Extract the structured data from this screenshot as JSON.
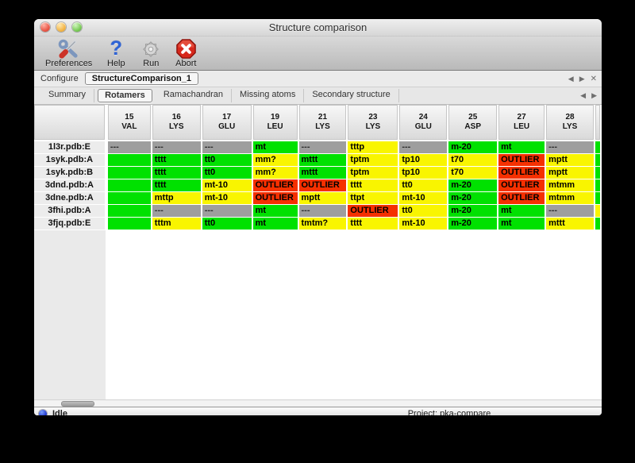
{
  "window": {
    "title": "Structure comparison"
  },
  "toolbar": {
    "items": [
      {
        "label": "Preferences",
        "icon": "tools-icon"
      },
      {
        "label": "Help",
        "icon": "question-mark-icon"
      },
      {
        "label": "Run",
        "icon": "gear-icon"
      },
      {
        "label": "Abort",
        "icon": "abort-icon"
      }
    ]
  },
  "configure": {
    "label": "Configure",
    "value": "StructureComparison_1",
    "prev": "◀",
    "next": "▶",
    "close": "✕"
  },
  "tabs": {
    "selected": "Rotamers",
    "items": [
      "Summary",
      "Rotamers",
      "Ramachandran",
      "Missing atoms",
      "Secondary structure"
    ],
    "prev": "◀",
    "next": "▶"
  },
  "colors": {
    "green": "#00e100",
    "yellow": "#f9f500",
    "red": "#f53000",
    "gray": "#9e9e9e"
  },
  "table": {
    "columns": [
      {
        "num": "15",
        "res": "VAL"
      },
      {
        "num": "16",
        "res": "LYS"
      },
      {
        "num": "17",
        "res": "GLU"
      },
      {
        "num": "19",
        "res": "LEU"
      },
      {
        "num": "21",
        "res": "LYS"
      },
      {
        "num": "23",
        "res": "LYS"
      },
      {
        "num": "24",
        "res": "GLU"
      },
      {
        "num": "25",
        "res": "ASP"
      },
      {
        "num": "27",
        "res": "LEU"
      },
      {
        "num": "28",
        "res": "LYS"
      },
      {
        "num": "",
        "res": ""
      }
    ],
    "rows": [
      {
        "label": "1l3r.pdb:E",
        "cells": [
          {
            "t": "---",
            "c": "gray"
          },
          {
            "t": "---",
            "c": "gray"
          },
          {
            "t": "---",
            "c": "gray"
          },
          {
            "t": "mt",
            "c": "green"
          },
          {
            "t": "---",
            "c": "gray"
          },
          {
            "t": "tttp",
            "c": "yellow"
          },
          {
            "t": "---",
            "c": "gray"
          },
          {
            "t": "m-20",
            "c": "green"
          },
          {
            "t": "mt",
            "c": "green"
          },
          {
            "t": "---",
            "c": "gray"
          },
          {
            "t": "",
            "c": "green"
          }
        ]
      },
      {
        "label": "1syk.pdb:A",
        "cells": [
          {
            "t": "",
            "c": "green"
          },
          {
            "t": "tttt",
            "c": "green"
          },
          {
            "t": "tt0",
            "c": "green"
          },
          {
            "t": "mm?",
            "c": "yellow"
          },
          {
            "t": "mttt",
            "c": "green"
          },
          {
            "t": "tptm",
            "c": "yellow"
          },
          {
            "t": "tp10",
            "c": "yellow"
          },
          {
            "t": "t70",
            "c": "yellow"
          },
          {
            "t": "OUTLIER",
            "c": "red"
          },
          {
            "t": "mptt",
            "c": "yellow"
          },
          {
            "t": "",
            "c": "green"
          }
        ]
      },
      {
        "label": "1syk.pdb:B",
        "cells": [
          {
            "t": "",
            "c": "green"
          },
          {
            "t": "tttt",
            "c": "green"
          },
          {
            "t": "tt0",
            "c": "green"
          },
          {
            "t": "mm?",
            "c": "yellow"
          },
          {
            "t": "mttt",
            "c": "green"
          },
          {
            "t": "tptm",
            "c": "yellow"
          },
          {
            "t": "tp10",
            "c": "yellow"
          },
          {
            "t": "t70",
            "c": "yellow"
          },
          {
            "t": "OUTLIER",
            "c": "red"
          },
          {
            "t": "mptt",
            "c": "yellow"
          },
          {
            "t": "",
            "c": "green"
          }
        ]
      },
      {
        "label": "3dnd.pdb:A",
        "cells": [
          {
            "t": "",
            "c": "green"
          },
          {
            "t": "tttt",
            "c": "green"
          },
          {
            "t": "mt-10",
            "c": "yellow"
          },
          {
            "t": "OUTLIER",
            "c": "red"
          },
          {
            "t": "OUTLIER",
            "c": "red"
          },
          {
            "t": "tttt",
            "c": "yellow"
          },
          {
            "t": "tt0",
            "c": "yellow"
          },
          {
            "t": "m-20",
            "c": "green"
          },
          {
            "t": "OUTLIER",
            "c": "red"
          },
          {
            "t": "mtmm",
            "c": "yellow"
          },
          {
            "t": "",
            "c": "green"
          }
        ]
      },
      {
        "label": "3dne.pdb:A",
        "cells": [
          {
            "t": "",
            "c": "green"
          },
          {
            "t": "mttp",
            "c": "yellow"
          },
          {
            "t": "mt-10",
            "c": "yellow"
          },
          {
            "t": "OUTLIER",
            "c": "red"
          },
          {
            "t": "mptt",
            "c": "yellow"
          },
          {
            "t": "ttpt",
            "c": "yellow"
          },
          {
            "t": "mt-10",
            "c": "yellow"
          },
          {
            "t": "m-20",
            "c": "green"
          },
          {
            "t": "OUTLIER",
            "c": "red"
          },
          {
            "t": "mtmm",
            "c": "yellow"
          },
          {
            "t": "",
            "c": "green"
          }
        ]
      },
      {
        "label": "3fhi.pdb:A",
        "cells": [
          {
            "t": "",
            "c": "green"
          },
          {
            "t": "---",
            "c": "gray"
          },
          {
            "t": "---",
            "c": "gray"
          },
          {
            "t": "mt",
            "c": "green"
          },
          {
            "t": "---",
            "c": "gray"
          },
          {
            "t": "OUTLIER",
            "c": "red"
          },
          {
            "t": "tt0",
            "c": "yellow"
          },
          {
            "t": "m-20",
            "c": "green"
          },
          {
            "t": "mt",
            "c": "green"
          },
          {
            "t": "---",
            "c": "gray"
          },
          {
            "t": "",
            "c": "yellow"
          }
        ]
      },
      {
        "label": "3fjq.pdb:E",
        "cells": [
          {
            "t": "",
            "c": "green"
          },
          {
            "t": "tttm",
            "c": "yellow"
          },
          {
            "t": "tt0",
            "c": "green"
          },
          {
            "t": "mt",
            "c": "green"
          },
          {
            "t": "tmtm?",
            "c": "yellow"
          },
          {
            "t": "tttt",
            "c": "yellow"
          },
          {
            "t": "mt-10",
            "c": "yellow"
          },
          {
            "t": "m-20",
            "c": "green"
          },
          {
            "t": "mt",
            "c": "green"
          },
          {
            "t": "mttt",
            "c": "yellow"
          },
          {
            "t": "",
            "c": "green"
          }
        ]
      }
    ]
  },
  "statusbar": {
    "status": "Idle",
    "project": "Project: pka-compare"
  }
}
